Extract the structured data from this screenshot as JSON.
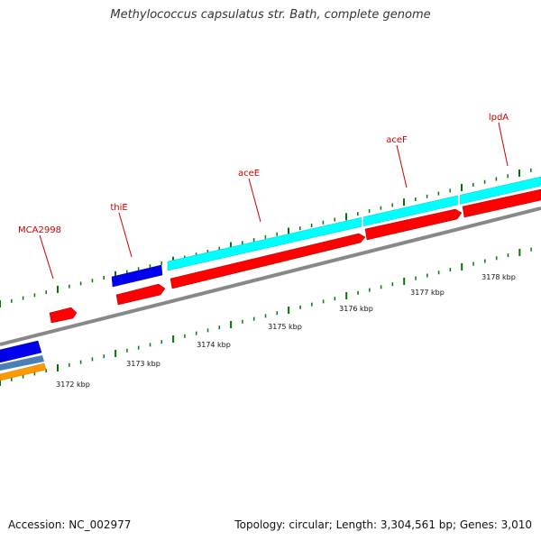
{
  "title": "Methylococcus capsulatus str. Bath, complete genome",
  "footer": {
    "accession": "Accession: NC_002977",
    "stats": "Topology: circular; Length: 3,304,561 bp; Genes: 3,010"
  },
  "genes": [
    {
      "name": "MCA2998",
      "label_color": "#cc0000"
    },
    {
      "name": "thiE",
      "label_color": "#cc0000"
    },
    {
      "name": "aceE",
      "label_color": "#cc0000"
    },
    {
      "name": "aceF",
      "label_color": "#cc0000"
    },
    {
      "name": "lpdA",
      "label_color": "#cc0000"
    }
  ],
  "scale_labels": [
    "3172 kbp",
    "3173 kbp",
    "3174 kbp",
    "3175 kbp",
    "3176 kbp",
    "3177 kbp",
    "3178 kbp"
  ],
  "colors": {
    "backbone": "#888888",
    "cds": "#ff0000",
    "blue_feature": "#0000ee",
    "cyan_feature": "#00ffff",
    "steel_feature": "#4a7fb5",
    "orange_feature": "#ff9900",
    "ticks": "#007700",
    "label_lines": "#cc0000"
  }
}
